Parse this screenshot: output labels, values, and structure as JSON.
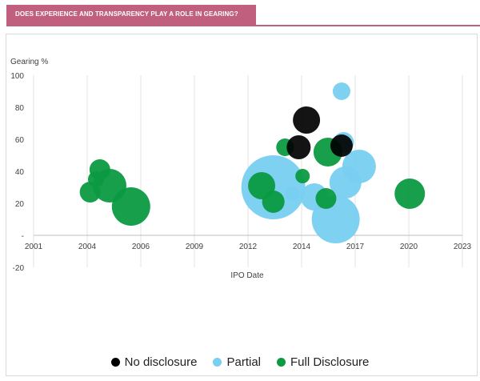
{
  "header": {
    "title": "DOES EXPERIENCE AND TRANSPARENCY PLAY A ROLE IN GEARING?",
    "color": "#c0607e"
  },
  "chart_data": {
    "type": "bubble",
    "title": "DOES EXPERIENCE AND TRANSPARENCY PLAY A ROLE IN GEARING?",
    "xlabel": "IPO Date",
    "ylabel": "Gearing %",
    "xlim": [
      2001,
      2023
    ],
    "ylim": [
      -20,
      100
    ],
    "x_ticks": [
      "2001",
      "2004",
      "2006",
      "2009",
      "2012",
      "2014",
      "2017",
      "2020",
      "2023"
    ],
    "y_ticks": [
      "-20",
      "-",
      "20",
      "40",
      "60",
      "80",
      "100"
    ],
    "grid": "vertical",
    "legend_position": "bottom",
    "series": [
      {
        "name": "No disclosure",
        "color": "#000000",
        "points": [
          {
            "x": 2015.0,
            "y": 72,
            "size": 17
          },
          {
            "x": 2014.6,
            "y": 55,
            "size": 15
          },
          {
            "x": 2016.8,
            "y": 56,
            "size": 14
          }
        ]
      },
      {
        "name": "Partial",
        "color": "#78cff0",
        "points": [
          {
            "x": 2013.3,
            "y": 30,
            "size": 40
          },
          {
            "x": 2016.5,
            "y": 10,
            "size": 30
          },
          {
            "x": 2017.7,
            "y": 43,
            "size": 21
          },
          {
            "x": 2017.0,
            "y": 33,
            "size": 20
          },
          {
            "x": 2015.4,
            "y": 24,
            "size": 17
          },
          {
            "x": 2016.9,
            "y": 58,
            "size": 13
          },
          {
            "x": 2016.8,
            "y": 90,
            "size": 11
          },
          {
            "x": 2014.3,
            "y": 26,
            "size": 9
          }
        ]
      },
      {
        "name": "Full Disclosure",
        "color": "#0b9a41",
        "points": [
          {
            "x": 2006.0,
            "y": 18,
            "size": 24
          },
          {
            "x": 2004.9,
            "y": 31,
            "size": 21
          },
          {
            "x": 2003.9,
            "y": 27,
            "size": 13
          },
          {
            "x": 2004.4,
            "y": 41,
            "size": 13
          },
          {
            "x": 2004.2,
            "y": 35,
            "size": 10
          },
          {
            "x": 2012.7,
            "y": 31,
            "size": 17
          },
          {
            "x": 2013.3,
            "y": 21,
            "size": 14
          },
          {
            "x": 2016.1,
            "y": 52,
            "size": 18
          },
          {
            "x": 2016.0,
            "y": 23,
            "size": 13
          },
          {
            "x": 2013.9,
            "y": 55,
            "size": 11
          },
          {
            "x": 2014.8,
            "y": 37,
            "size": 9
          },
          {
            "x": 2020.3,
            "y": 26,
            "size": 19
          }
        ]
      }
    ]
  }
}
